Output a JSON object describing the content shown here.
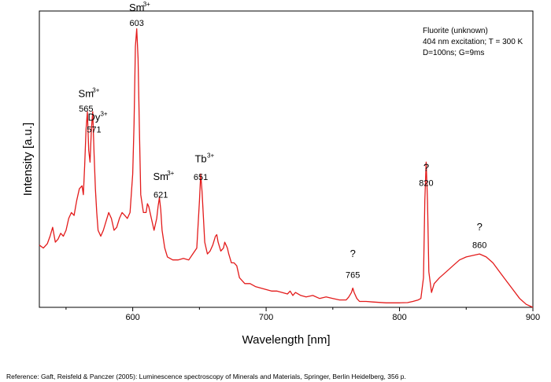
{
  "chart_data": {
    "type": "line",
    "xlabel": "Wavelength [nm]",
    "ylabel": "Intensity [a.u.]",
    "xlim": [
      530,
      900
    ],
    "ylim": [
      0,
      1
    ],
    "x_ticks": [
      600,
      700,
      800,
      900
    ],
    "y_ticks": [],
    "grid": false,
    "legend_lines": [
      "Fluorite (unknown)",
      "404 nm excitation; T = 300 K",
      "D=100ns; G=9ms"
    ],
    "legend_position": "top-right",
    "line_color": "#e31b1b",
    "series": [
      {
        "x": [
          530,
          533,
          536,
          538,
          540,
          542,
          544,
          546,
          548,
          550,
          552,
          554,
          556,
          558,
          560,
          562,
          563,
          564,
          565,
          566,
          567,
          568,
          569,
          570,
          571,
          572,
          573,
          574,
          576,
          578,
          580,
          582,
          584,
          586,
          588,
          590,
          592,
          594,
          596,
          598,
          600,
          601,
          602,
          603,
          604,
          605,
          606,
          608,
          610,
          611,
          612,
          614,
          616,
          618,
          619,
          620,
          621,
          622,
          624,
          626,
          628,
          630,
          634,
          638,
          642,
          645,
          648,
          650,
          651,
          652,
          654,
          656,
          658,
          660,
          662,
          663,
          664,
          666,
          668,
          669,
          670,
          671,
          672,
          674,
          676,
          678,
          680,
          684,
          688,
          692,
          696,
          700,
          704,
          708,
          712,
          716,
          718,
          720,
          722,
          726,
          730,
          735,
          740,
          745,
          750,
          755,
          760,
          762,
          764,
          765,
          766,
          768,
          770,
          775,
          780,
          790,
          800,
          806,
          810,
          814,
          816,
          818,
          819,
          820,
          821,
          822,
          824,
          826,
          830,
          835,
          840,
          845,
          850,
          855,
          860,
          865,
          870,
          875,
          880,
          885,
          890,
          895,
          900
        ],
        "y": [
          0.21,
          0.2,
          0.215,
          0.24,
          0.27,
          0.22,
          0.23,
          0.25,
          0.24,
          0.26,
          0.3,
          0.32,
          0.31,
          0.36,
          0.4,
          0.41,
          0.38,
          0.48,
          0.6,
          0.66,
          0.53,
          0.49,
          0.6,
          0.66,
          0.52,
          0.4,
          0.32,
          0.26,
          0.24,
          0.26,
          0.29,
          0.32,
          0.3,
          0.26,
          0.27,
          0.3,
          0.32,
          0.31,
          0.3,
          0.32,
          0.45,
          0.62,
          0.88,
          0.94,
          0.84,
          0.6,
          0.38,
          0.32,
          0.32,
          0.35,
          0.34,
          0.3,
          0.26,
          0.3,
          0.34,
          0.37,
          0.33,
          0.26,
          0.2,
          0.17,
          0.165,
          0.16,
          0.16,
          0.165,
          0.16,
          0.18,
          0.2,
          0.36,
          0.45,
          0.39,
          0.22,
          0.18,
          0.19,
          0.21,
          0.24,
          0.245,
          0.22,
          0.19,
          0.2,
          0.22,
          0.21,
          0.2,
          0.18,
          0.15,
          0.15,
          0.14,
          0.1,
          0.08,
          0.08,
          0.07,
          0.065,
          0.06,
          0.055,
          0.055,
          0.05,
          0.045,
          0.055,
          0.04,
          0.05,
          0.04,
          0.035,
          0.04,
          0.03,
          0.035,
          0.03,
          0.025,
          0.025,
          0.035,
          0.05,
          0.065,
          0.05,
          0.03,
          0.02,
          0.02,
          0.018,
          0.015,
          0.015,
          0.016,
          0.02,
          0.025,
          0.03,
          0.1,
          0.36,
          0.49,
          0.36,
          0.12,
          0.05,
          0.08,
          0.1,
          0.12,
          0.14,
          0.16,
          0.17,
          0.175,
          0.18,
          0.17,
          0.15,
          0.12,
          0.09,
          0.06,
          0.03,
          0.01,
          0
        ]
      }
    ],
    "annotations": [
      {
        "label": "Sm",
        "superscript": "3+",
        "x": 565,
        "y": 0.71
      },
      {
        "label": "565",
        "x": 565,
        "y": 0.66
      },
      {
        "label": "Dy",
        "superscript": "3+",
        "x": 571,
        "y": 0.63
      },
      {
        "label": "571",
        "x": 571,
        "y": 0.59
      },
      {
        "label": "Sm",
        "superscript": "3+",
        "x": 603,
        "y": 1.0
      },
      {
        "label": "603",
        "x": 603,
        "y": 0.95
      },
      {
        "label": "Sm",
        "superscript": "3+",
        "x": 621,
        "y": 0.43
      },
      {
        "label": "621",
        "x": 621,
        "y": 0.37
      },
      {
        "label": "Tb",
        "superscript": "3+",
        "x": 651,
        "y": 0.49
      },
      {
        "label": "651",
        "x": 651,
        "y": 0.43
      },
      {
        "label": "?",
        "x": 765,
        "y": 0.17
      },
      {
        "label": "765",
        "x": 765,
        "y": 0.1
      },
      {
        "label": "?",
        "x": 820,
        "y": 0.46
      },
      {
        "label": "820",
        "x": 820,
        "y": 0.41
      },
      {
        "label": "?",
        "x": 860,
        "y": 0.26
      },
      {
        "label": "860",
        "x": 860,
        "y": 0.2
      }
    ]
  },
  "reference": "Reference: Gaft, Reisfeld & Panczer (2005): Luminescence spectroscopy of Minerals and Materials, Springer, Berlin Heidelberg, 356 p."
}
